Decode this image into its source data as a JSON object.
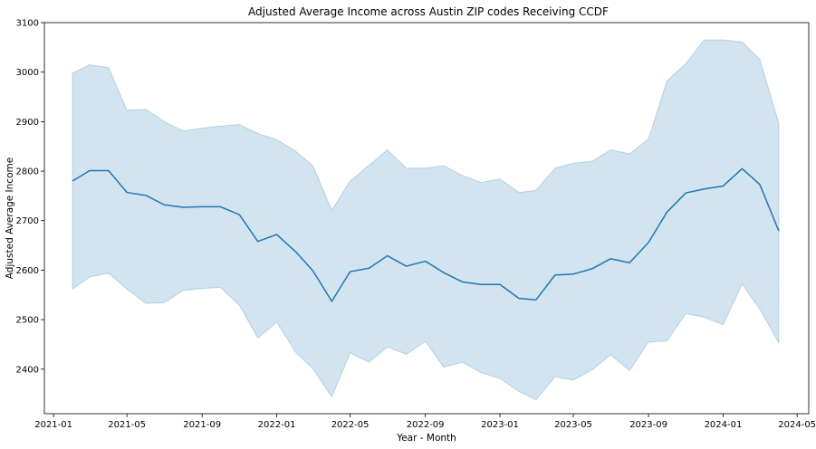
{
  "chart_data": {
    "type": "line",
    "title": "Adjusted Average Income across Austin ZIP codes Receiving CCDF",
    "xlabel": "Year - Month",
    "ylabel": "Adjusted Average Income",
    "xlim": [
      "2020-12-17",
      "2024-05-20"
    ],
    "ylim": [
      2310,
      3100
    ],
    "x_ticks": [
      "2021-01",
      "2021-05",
      "2021-09",
      "2022-01",
      "2022-05",
      "2022-09",
      "2023-01",
      "2023-05",
      "2023-09",
      "2024-01",
      "2024-05"
    ],
    "y_ticks": [
      2400,
      2500,
      2600,
      2700,
      2800,
      2900,
      3000,
      3100
    ],
    "grid": false,
    "line_color": "#1f77b4",
    "band_color": "#1f77b4",
    "x": [
      "2021-02",
      "2021-03",
      "2021-04",
      "2021-05",
      "2021-06",
      "2021-07",
      "2021-08",
      "2021-09",
      "2021-10",
      "2021-11",
      "2021-12",
      "2022-01",
      "2022-02",
      "2022-03",
      "2022-04",
      "2022-05",
      "2022-06",
      "2022-07",
      "2022-08",
      "2022-09",
      "2022-10",
      "2022-11",
      "2022-12",
      "2023-01",
      "2023-02",
      "2023-03",
      "2023-04",
      "2023-05",
      "2023-06",
      "2023-07",
      "2023-08",
      "2023-09",
      "2023-10",
      "2023-11",
      "2023-12",
      "2024-01",
      "2024-02",
      "2024-03",
      "2024-04"
    ],
    "series": [
      {
        "values": [
          2780,
          2801,
          2801,
          2757,
          2751,
          2732,
          2727,
          2728,
          2728,
          2712,
          2658,
          2672,
          2637,
          2599,
          2537,
          2597,
          2604,
          2629,
          2608,
          2618,
          2595,
          2576,
          2571,
          2571,
          2543,
          2540,
          2590,
          2592,
          2603,
          2623,
          2615,
          2656,
          2717,
          2756,
          2764,
          2770,
          2805,
          2773,
          2679
        ],
        "upper": [
          2998,
          3015,
          3009,
          2923,
          2925,
          2900,
          2881,
          2887,
          2891,
          2894,
          2876,
          2864,
          2840,
          2811,
          2721,
          2780,
          2812,
          2843,
          2806,
          2806,
          2811,
          2791,
          2777,
          2784,
          2757,
          2761,
          2806,
          2816,
          2820,
          2843,
          2835,
          2865,
          2982,
          3017,
          3065,
          3065,
          3061,
          3026,
          2896
        ],
        "lower": [
          2562,
          2586,
          2594,
          2562,
          2533,
          2534,
          2559,
          2563,
          2565,
          2529,
          2463,
          2495,
          2434,
          2401,
          2344,
          2433,
          2414,
          2445,
          2430,
          2456,
          2404,
          2414,
          2393,
          2381,
          2355,
          2338,
          2384,
          2378,
          2399,
          2429,
          2397,
          2455,
          2457,
          2512,
          2505,
          2490,
          2572,
          2521,
          2453
        ]
      }
    ]
  }
}
